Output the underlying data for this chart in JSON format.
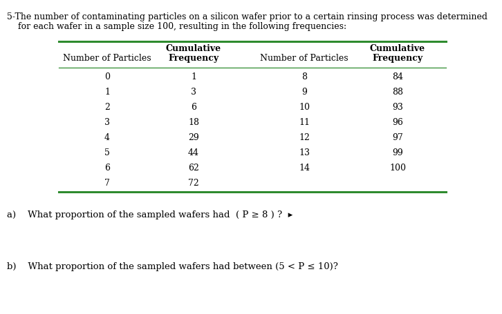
{
  "title_line1": "5-The number of contaminating particles on a silicon wafer prior to a certain rinsing process was determined",
  "title_line2": "    for each wafer in a sample size 100, resulting in the following frequencies:",
  "left_particles": [
    0,
    1,
    2,
    3,
    4,
    5,
    6,
    7
  ],
  "left_cum_freq": [
    1,
    3,
    6,
    18,
    29,
    44,
    62,
    72
  ],
  "right_particles": [
    8,
    9,
    10,
    11,
    12,
    13,
    14
  ],
  "right_cum_freq": [
    84,
    88,
    93,
    96,
    97,
    99,
    100
  ],
  "question_a": "a)    What proportion of the sampled wafers had  ( P ≥ 8 ) ?  ▸",
  "question_b": "b)    What proportion of the sampled wafers had between (5 < P ≤ 10)?",
  "bg_color": "#ffffff",
  "text_color": "#000000",
  "line_color": "#2e8b2e",
  "font_size_title": 9.0,
  "font_size_table": 9.0,
  "font_size_questions": 9.5
}
